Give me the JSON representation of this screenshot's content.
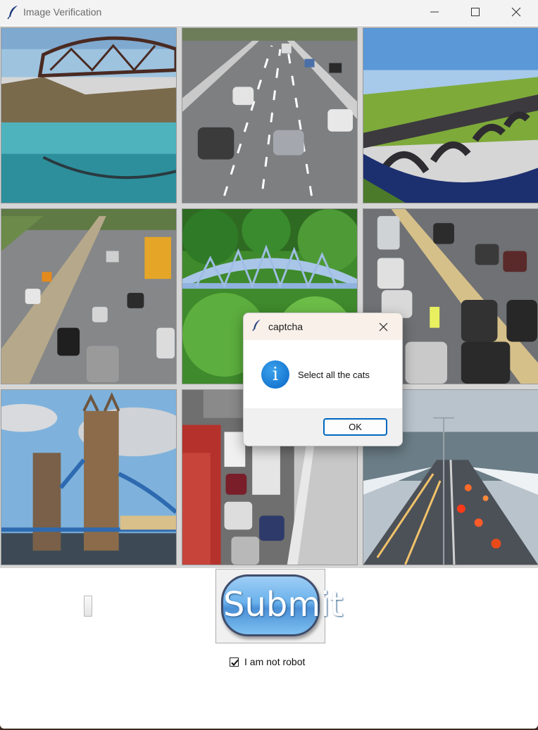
{
  "window": {
    "title": "Image Verification"
  },
  "icons": {
    "app": "feather-icon",
    "minimize": "minimize-icon",
    "maximize": "maximize-icon",
    "close": "close-icon",
    "info": "info-icon"
  },
  "grid": {
    "tiles": [
      {
        "subject": "bridge"
      },
      {
        "subject": "highway"
      },
      {
        "subject": "bridge"
      },
      {
        "subject": "highway"
      },
      {
        "subject": "bridge"
      },
      {
        "subject": "highway"
      },
      {
        "subject": "bridge"
      },
      {
        "subject": "highway"
      },
      {
        "subject": "highway"
      }
    ]
  },
  "form": {
    "submit_label": "Submit",
    "robot_label": "I am not robot",
    "robot_checked": true
  },
  "dialog": {
    "title": "captcha",
    "message": "Select all the cats",
    "ok_label": "OK",
    "info_glyph": "i"
  },
  "colors": {
    "accent": "#0067c0",
    "info": "#0a78d4"
  }
}
